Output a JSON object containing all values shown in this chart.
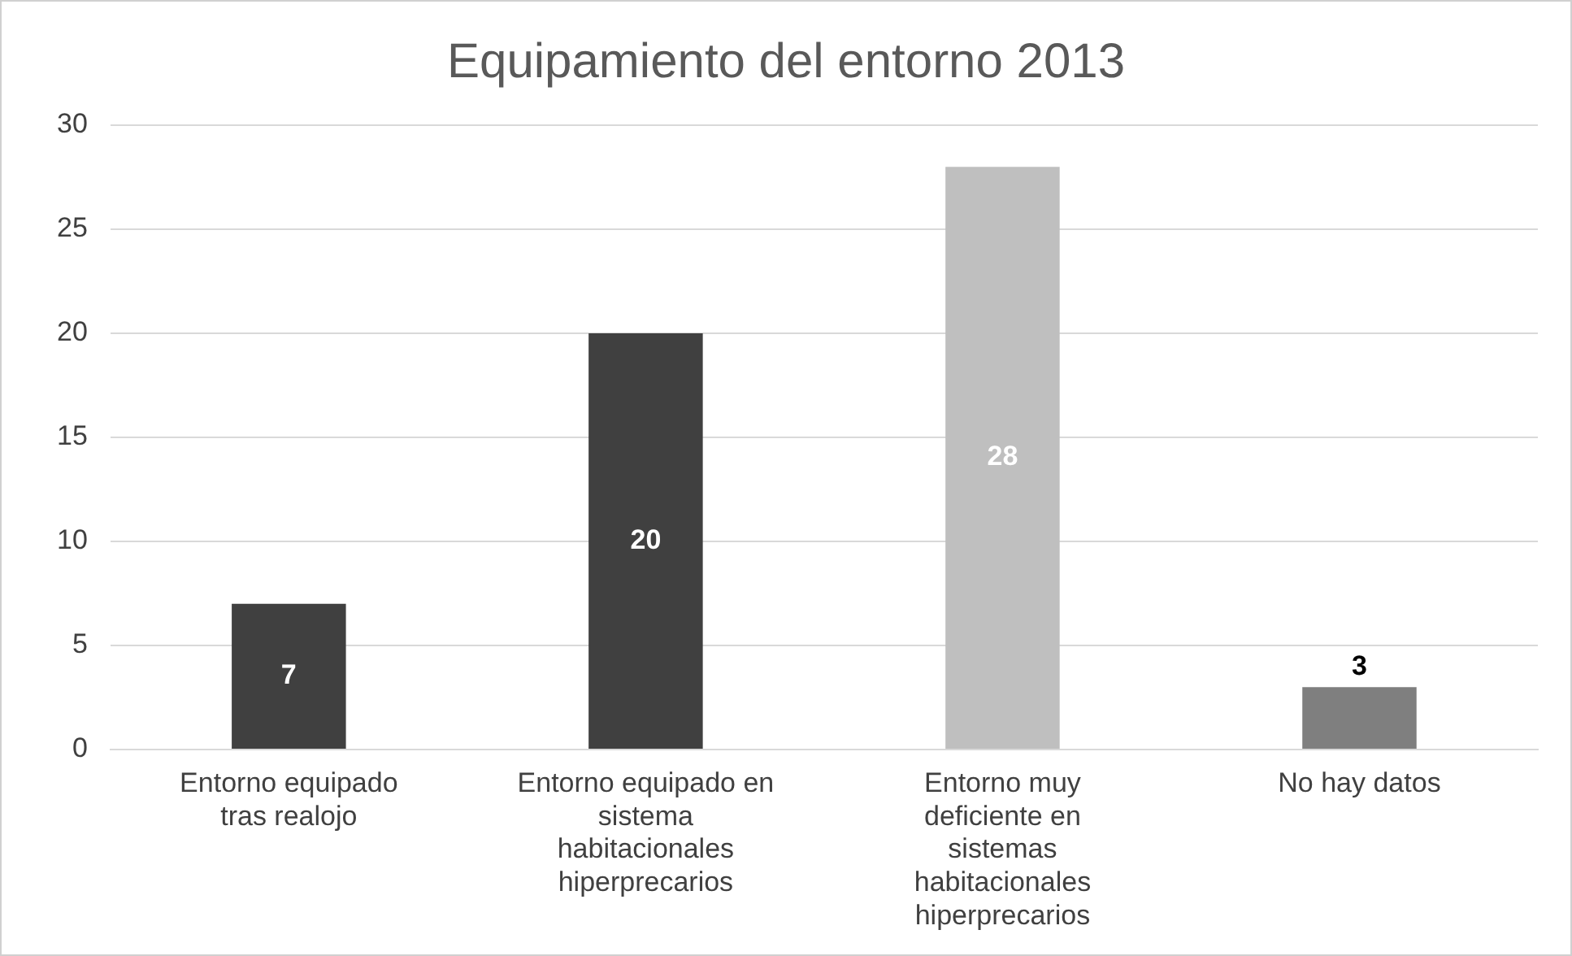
{
  "chart_data": {
    "type": "bar",
    "title": "Equipamiento del entorno 2013",
    "categories": [
      "Entorno equipado tras realojo",
      "Entorno equipado en sistema habitacionales hiperprecarios",
      "Entorno muy deficiente en sistemas habitacionales hiperprecarios",
      "No hay datos"
    ],
    "values": [
      7,
      20,
      28,
      3
    ],
    "colors": [
      "#404040",
      "#404040",
      "#bfbfbf",
      "#7f7f7f"
    ],
    "ylim": [
      0,
      30
    ],
    "yticks": [
      0,
      5,
      10,
      15,
      20,
      25,
      30
    ],
    "grid": "y",
    "legend": false,
    "data_labels": true
  }
}
